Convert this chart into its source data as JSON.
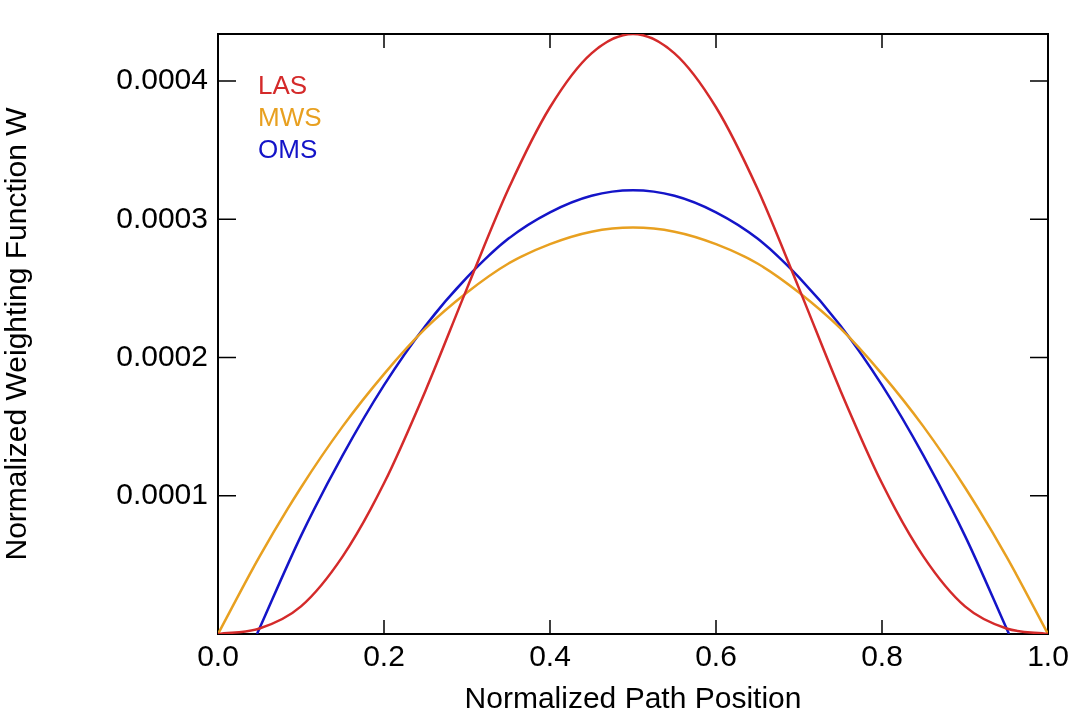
{
  "chart_data": {
    "type": "line",
    "xlabel": "Normalized Path Position",
    "ylabel": "Normalized Weighting Function W",
    "xlim": [
      0,
      1
    ],
    "ylim": [
      0,
      0.000434
    ],
    "xticks": [
      {
        "value": 0,
        "label": "0.0"
      },
      {
        "value": 0.2,
        "label": "0.2"
      },
      {
        "value": 0.4,
        "label": "0.4"
      },
      {
        "value": 0.6,
        "label": "0.6"
      },
      {
        "value": 0.8,
        "label": "0.8"
      },
      {
        "value": 1,
        "label": "1.0"
      }
    ],
    "yticks": [
      0.0001,
      0.0002,
      0.0003,
      0.0004
    ],
    "grid": false,
    "legend": "top left",
    "marker": "none",
    "line_style": "solid",
    "series": [
      {
        "name": "LAS",
        "color": "#d42a2a",
        "x": [
          0,
          0.05,
          0.1,
          0.15,
          0.2,
          0.25,
          0.3,
          0.35,
          0.4,
          0.45,
          0.5,
          0.55,
          0.6,
          0.65,
          0.7,
          0.75,
          0.8,
          0.85,
          0.9,
          0.95,
          1
        ],
        "values": [
          0,
          4e-06,
          2e-05,
          5.6e-05,
          0.000109,
          0.000176,
          0.00025,
          0.000322,
          0.000381,
          0.00042,
          0.000434,
          0.00042,
          0.000381,
          0.000322,
          0.00025,
          0.000176,
          0.000109,
          5.6e-05,
          2e-05,
          4e-06,
          0
        ]
      },
      {
        "name": "MWS",
        "color": "#e8a020",
        "x": [
          0,
          0.05,
          0.1,
          0.15,
          0.2,
          0.25,
          0.3,
          0.35,
          0.4,
          0.45,
          0.5,
          0.55,
          0.6,
          0.65,
          0.7,
          0.75,
          0.8,
          0.85,
          0.9,
          0.95,
          1
        ],
        "values": [
          0,
          5.6e-05,
          0.000106,
          0.00015,
          0.000188,
          0.000221,
          0.000247,
          0.000268,
          0.000282,
          0.000291,
          0.000294,
          0.000291,
          0.000282,
          0.000268,
          0.000247,
          0.000221,
          0.000188,
          0.00015,
          0.000106,
          5.6e-05,
          0
        ]
      },
      {
        "name": "OMS",
        "color": "#1414c8",
        "x": [
          0.047,
          0.1,
          0.15,
          0.2,
          0.25,
          0.3,
          0.35,
          0.4,
          0.45,
          0.5,
          0.55,
          0.6,
          0.65,
          0.7,
          0.75,
          0.8,
          0.85,
          0.9,
          0.953
        ],
        "values": [
          0,
          7.1e-05,
          0.000129,
          0.00018,
          0.000223,
          0.000258,
          0.000286,
          0.000305,
          0.000317,
          0.000321,
          0.000317,
          0.000305,
          0.000286,
          0.000258,
          0.000223,
          0.00018,
          0.000129,
          7.1e-05,
          0
        ]
      }
    ]
  }
}
